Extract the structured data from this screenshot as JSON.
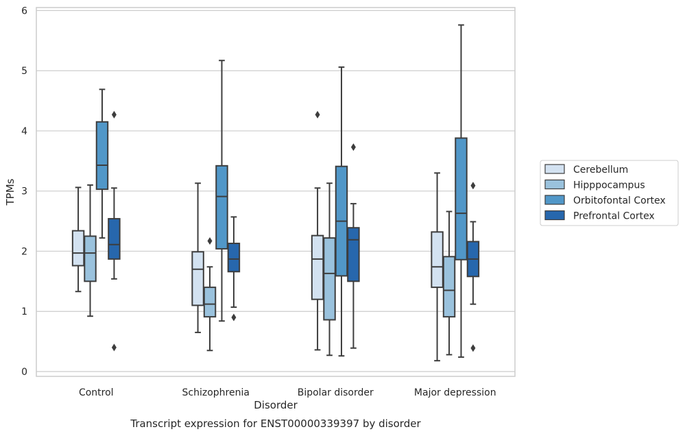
{
  "chart_data": {
    "type": "box",
    "title": "Transcript expression for ENST00000339397 by disorder",
    "xlabel": "Disorder",
    "ylabel": "TPMs",
    "ylim": [
      -0.08,
      6.05
    ],
    "yticks": [
      "0",
      "1",
      "2",
      "3",
      "4",
      "5",
      "6"
    ],
    "grid": "horizontal",
    "legend_position": "right",
    "categories": [
      "Control",
      "Schizophrenia",
      "Bipolar disorder",
      "Major depression"
    ],
    "series": [
      {
        "name": "Cerebellum",
        "color": "#d3e2f1",
        "boxes": [
          {
            "whislo": 1.33,
            "q1": 1.76,
            "med": 1.97,
            "q3": 2.34,
            "whishi": 3.06,
            "fliers": []
          },
          {
            "whislo": 0.65,
            "q1": 1.1,
            "med": 1.7,
            "q3": 1.99,
            "whishi": 3.13,
            "fliers": []
          },
          {
            "whislo": 0.36,
            "q1": 1.2,
            "med": 1.87,
            "q3": 2.26,
            "whishi": 3.05,
            "fliers": [
              4.27
            ]
          },
          {
            "whislo": 0.18,
            "q1": 1.4,
            "med": 1.74,
            "q3": 2.32,
            "whishi": 3.3,
            "fliers": []
          }
        ]
      },
      {
        "name": "Hipppocampus",
        "color": "#9ac2dd",
        "boxes": [
          {
            "whislo": 0.92,
            "q1": 1.5,
            "med": 1.97,
            "q3": 2.25,
            "whishi": 3.1,
            "fliers": []
          },
          {
            "whislo": 0.35,
            "q1": 0.91,
            "med": 1.12,
            "q3": 1.4,
            "whishi": 1.74,
            "fliers": [
              2.17
            ]
          },
          {
            "whislo": 0.27,
            "q1": 0.86,
            "med": 1.63,
            "q3": 2.22,
            "whishi": 3.13,
            "fliers": []
          },
          {
            "whislo": 0.28,
            "q1": 0.91,
            "med": 1.35,
            "q3": 1.91,
            "whishi": 2.66,
            "fliers": []
          }
        ]
      },
      {
        "name": "Orbitofontal Cortex",
        "color": "#5197c8",
        "boxes": [
          {
            "whislo": 2.22,
            "q1": 3.03,
            "med": 3.43,
            "q3": 4.15,
            "whishi": 4.69,
            "fliers": []
          },
          {
            "whislo": 0.84,
            "q1": 2.04,
            "med": 2.91,
            "q3": 3.42,
            "whishi": 5.17,
            "fliers": []
          },
          {
            "whislo": 0.26,
            "q1": 1.59,
            "med": 2.5,
            "q3": 3.41,
            "whishi": 5.06,
            "fliers": []
          },
          {
            "whislo": 0.24,
            "q1": 1.86,
            "med": 2.63,
            "q3": 3.88,
            "whishi": 5.76,
            "fliers": []
          }
        ]
      },
      {
        "name": "Prefrontal Cortex",
        "color": "#2767ad",
        "boxes": [
          {
            "whislo": 1.54,
            "q1": 1.87,
            "med": 2.11,
            "q3": 2.54,
            "whishi": 3.05,
            "fliers": [
              4.27,
              0.4
            ]
          },
          {
            "whislo": 1.07,
            "q1": 1.66,
            "med": 1.87,
            "q3": 2.13,
            "whishi": 2.57,
            "fliers": [
              0.9
            ]
          },
          {
            "whislo": 0.39,
            "q1": 1.5,
            "med": 2.19,
            "q3": 2.39,
            "whishi": 2.79,
            "fliers": [
              3.73
            ]
          },
          {
            "whislo": 1.12,
            "q1": 1.58,
            "med": 1.87,
            "q3": 2.16,
            "whishi": 2.49,
            "fliers": [
              3.09,
              0.39
            ]
          }
        ]
      }
    ]
  }
}
